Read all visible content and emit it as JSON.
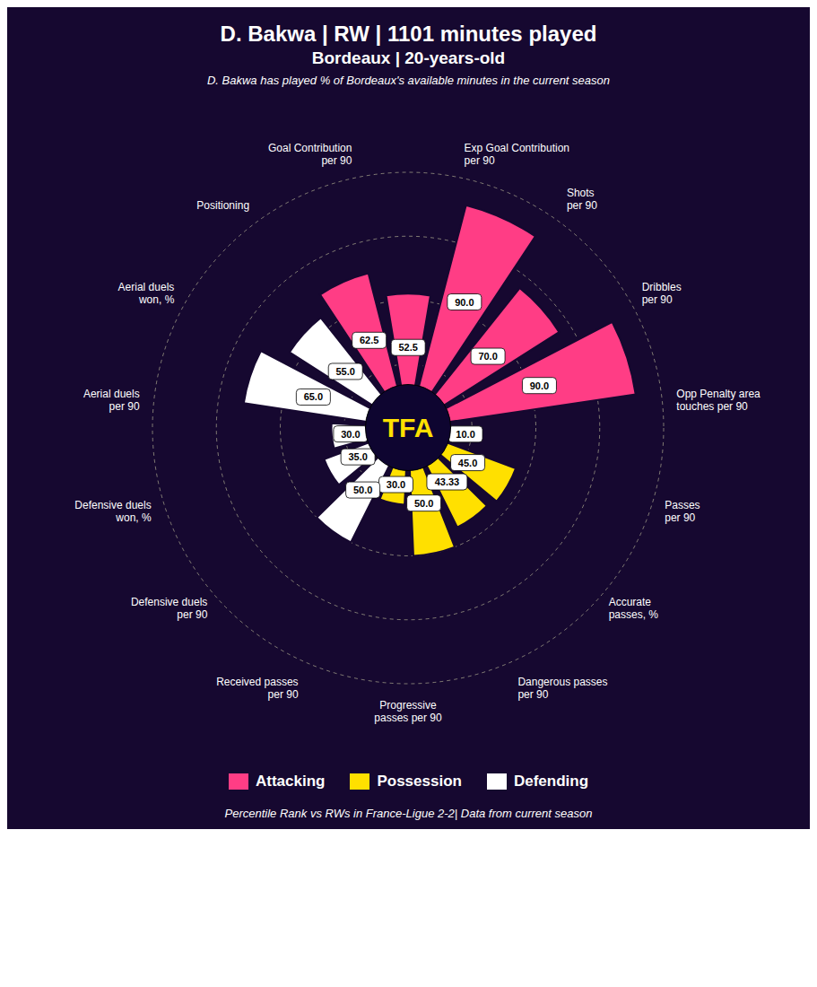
{
  "chart_data": {
    "type": "polar_bar",
    "title": "D. Bakwa | RW | 1101 minutes played\nBordeaux | 20-years-old",
    "subtitle": "D. Bakwa has played % of Bordeaux's available minutes in the current season",
    "annotations": [
      "TFA",
      "Percentile Rank vs RWs in France-Ligue 2-2| Data from current season"
    ],
    "categories": [
      "Goal Contribution\nper 90",
      "Exp Goal Contribution\nper 90",
      "Shots\nper 90",
      "Dribbles\nper 90",
      "Opp Penalty area\ntouches per 90",
      "Passes\nper 90",
      "Accurate\npasses, %",
      "Dangerous passes\nper 90",
      "Progressive\npasses per 90",
      "Received passes\nper 90",
      "Defensive duels\nper 90",
      "Defensive duels\nwon, %",
      "Aerial duels\nper 90",
      "Aerial duels\nwon, %",
      "Positioning"
    ],
    "series": [
      {
        "name": "Attacking",
        "color": "#ff3d85",
        "values": [
          62.5,
          52.5,
          90.0,
          70.0,
          90.0,
          null,
          null,
          null,
          null,
          null,
          null,
          null,
          null,
          null,
          null
        ],
        "value_labels": [
          "62.5",
          "52.5",
          "90.0",
          "70.0",
          "90.0",
          null,
          null,
          null,
          null,
          null,
          null,
          null,
          null,
          null,
          null
        ]
      },
      {
        "name": "Possession",
        "color": "#ffe000",
        "values": [
          null,
          null,
          null,
          null,
          null,
          10.0,
          45.0,
          43.33,
          50.0,
          30.0,
          null,
          null,
          null,
          null,
          null
        ],
        "value_labels": [
          null,
          null,
          null,
          null,
          null,
          "10.0",
          "45.0",
          "43.33",
          "50.0",
          "30.0",
          null,
          null,
          null,
          null,
          null
        ]
      },
      {
        "name": "Defending",
        "color": "#ffffff",
        "values": [
          null,
          null,
          null,
          null,
          null,
          null,
          null,
          null,
          null,
          null,
          50.0,
          35.0,
          30.0,
          65.0,
          55.0
        ],
        "value_labels": [
          null,
          null,
          null,
          null,
          null,
          null,
          null,
          null,
          null,
          null,
          "50.0",
          "35.0",
          "30.0",
          "65.0",
          "55.0"
        ]
      }
    ],
    "ylim": [
      0,
      100
    ],
    "yticks": [
      25,
      50,
      75,
      100
    ],
    "grid": true,
    "tick_labels": "x",
    "data_labels": true,
    "center_radius": 17
  }
}
